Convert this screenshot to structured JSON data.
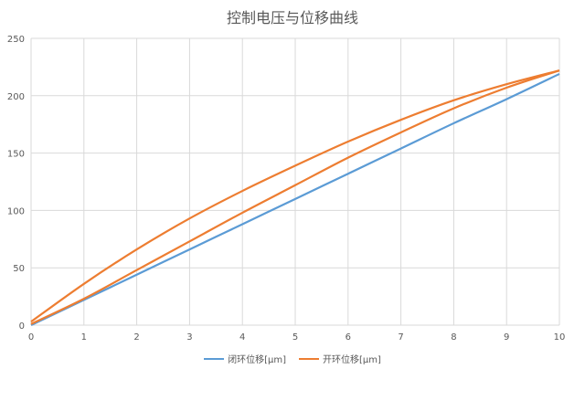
{
  "chart_data": {
    "type": "line",
    "title": "控制电压与位移曲线",
    "xlabel": "",
    "ylabel": "",
    "xlim": [
      0,
      10
    ],
    "ylim": [
      0,
      250
    ],
    "x_ticks": [
      "0",
      "1",
      "2",
      "3",
      "4",
      "5",
      "6",
      "7",
      "8",
      "9",
      "10"
    ],
    "y_ticks": [
      "0",
      "50",
      "100",
      "150",
      "200",
      "250"
    ],
    "grid": true,
    "legend_position": "bottom",
    "series": [
      {
        "name": "闭环位移[μm]",
        "color": "#5B9BD5",
        "x": [
          0,
          1,
          2,
          3,
          4,
          5,
          6,
          7,
          8,
          9,
          10
        ],
        "y": [
          0,
          22,
          44,
          66,
          88,
          110,
          132,
          154,
          176,
          197,
          219
        ]
      },
      {
        "name": "开环位移[μm]",
        "color": "#ED7D31",
        "x": [
          0,
          1,
          2,
          3,
          4,
          5,
          6,
          7,
          8,
          9,
          10
        ],
        "y": [
          1,
          23,
          48,
          73,
          98,
          122,
          146,
          168,
          189,
          207,
          222
        ]
      },
      {
        "name": "",
        "color": "#ED7D31",
        "x": [
          0,
          1,
          2,
          3,
          4,
          5,
          6,
          7,
          8,
          9,
          10
        ],
        "y": [
          3,
          36,
          66,
          93,
          117,
          139,
          160,
          179,
          196,
          210,
          222
        ]
      }
    ]
  }
}
